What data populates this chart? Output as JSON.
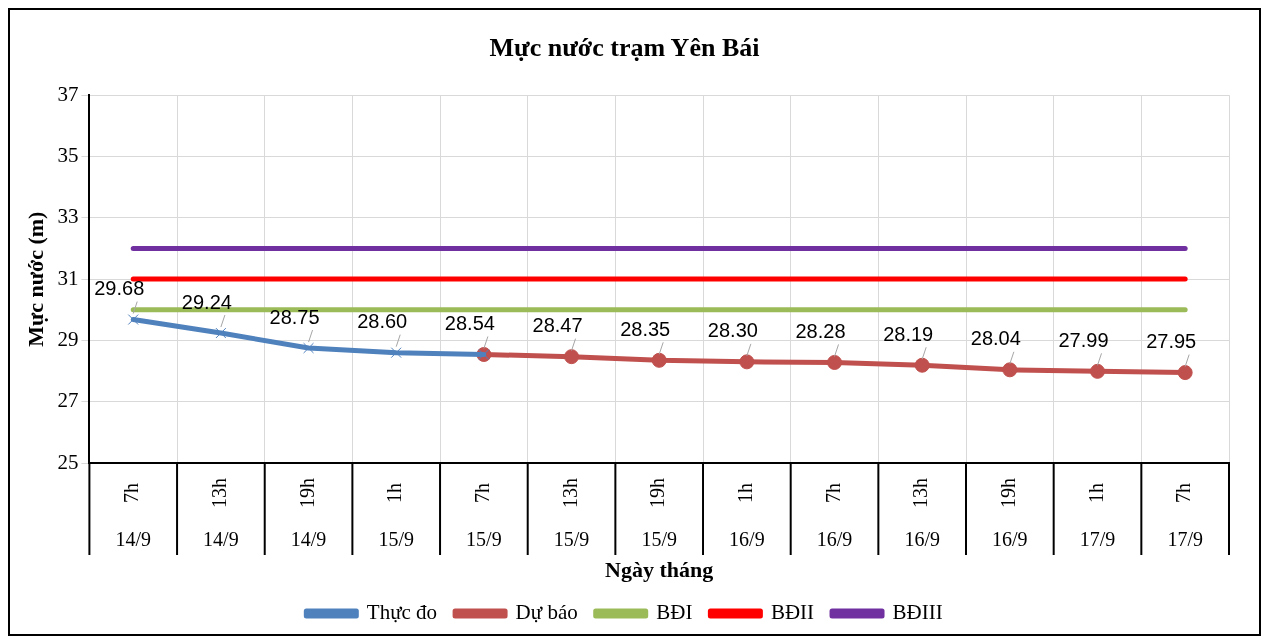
{
  "chart_data": {
    "type": "line",
    "title": "Mực nước trạm Yên Bái",
    "xlabel": "Ngày tháng",
    "ylabel": "Mực nước (m)",
    "categories": [
      "7h 14/9",
      "13h 14/9",
      "19h 14/9",
      "1h 15/9",
      "7h 15/9",
      "13h 15/9",
      "19h 15/9",
      "1h 16/9",
      "7h 16/9",
      "13h 16/9",
      "19h 16/9",
      "1h 17/9",
      "7h 17/9"
    ],
    "series": [
      {
        "name": "Thực đo",
        "color": "#4f81bd",
        "marker": "cross",
        "values": [
          29.68,
          29.24,
          28.75,
          28.6,
          28.54,
          null,
          null,
          null,
          null,
          null,
          null,
          null,
          null
        ],
        "value_labels": [
          "29.68",
          "29.24",
          "28.75",
          "28.60",
          "28.54",
          null,
          null,
          null,
          null,
          null,
          null,
          null,
          null
        ]
      },
      {
        "name": "Dự báo",
        "color": "#c0504d",
        "marker": "circle",
        "values": [
          null,
          null,
          null,
          null,
          28.54,
          28.47,
          28.35,
          28.3,
          28.28,
          28.19,
          28.04,
          27.99,
          27.95
        ],
        "value_labels": [
          null,
          null,
          null,
          null,
          null,
          "28.47",
          "28.35",
          "28.30",
          "28.28",
          "28.19",
          "28.04",
          "27.99",
          "27.95"
        ]
      },
      {
        "name": "BĐI",
        "color": "#9bbb59",
        "marker": "none",
        "values": [
          30,
          30,
          30,
          30,
          30,
          30,
          30,
          30,
          30,
          30,
          30,
          30,
          30
        ]
      },
      {
        "name": "BĐII",
        "color": "#ff0000",
        "marker": "none",
        "values": [
          31,
          31,
          31,
          31,
          31,
          31,
          31,
          31,
          31,
          31,
          31,
          31,
          31
        ]
      },
      {
        "name": "BĐIII",
        "color": "#7030a0",
        "marker": "none",
        "values": [
          32,
          32,
          32,
          32,
          32,
          32,
          32,
          32,
          32,
          32,
          32,
          32,
          32
        ]
      }
    ],
    "ylim": [
      25,
      37
    ],
    "yticks": [
      25,
      27,
      29,
      31,
      33,
      35,
      37
    ],
    "grid": true,
    "legend": "bottom",
    "line_style": "solid"
  }
}
